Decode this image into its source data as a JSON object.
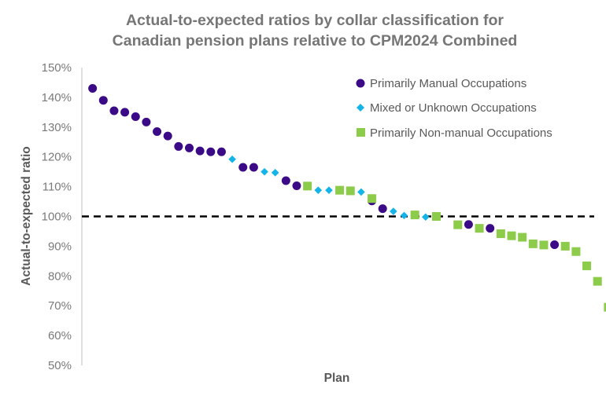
{
  "colors": {
    "manual": "#3b0a86",
    "mixed": "#14b4e8",
    "nonmanual": "#8ccc4a",
    "reference_line": "#000000",
    "text": "#595959",
    "title": "#767676"
  },
  "chart_data": {
    "type": "scatter",
    "title_lines": [
      "Actual-to-expected ratios by collar classification for",
      "Canadian pension plans relative to CPM2024 Combined"
    ],
    "xlabel": "Plan",
    "ylabel": "Actual-to-expected ratio",
    "ylim": [
      0.5,
      1.5
    ],
    "yticks": [
      {
        "value": 1.5,
        "label": "150%"
      },
      {
        "value": 1.4,
        "label": "140%"
      },
      {
        "value": 1.3,
        "label": "130%"
      },
      {
        "value": 1.2,
        "label": "120%"
      },
      {
        "value": 1.1,
        "label": "110%"
      },
      {
        "value": 1.0,
        "label": "100%"
      },
      {
        "value": 0.9,
        "label": "90%"
      },
      {
        "value": 0.8,
        "label": "80%"
      },
      {
        "value": 0.7,
        "label": "70%"
      },
      {
        "value": 0.6,
        "label": "60%"
      },
      {
        "value": 0.5,
        "label": "50%"
      }
    ],
    "reference_line": {
      "value": 1.0,
      "style": "dashed"
    },
    "grid": false,
    "legend_position": "top-right",
    "x_count": 48,
    "series": [
      {
        "name": "Primarily Manual Occupations",
        "marker": "circle",
        "color_key": "manual",
        "points": [
          [
            1,
            1.43
          ],
          [
            2,
            1.39
          ],
          [
            3,
            1.355
          ],
          [
            4,
            1.35
          ],
          [
            5,
            1.335
          ],
          [
            6,
            1.317
          ],
          [
            7,
            1.285
          ],
          [
            8,
            1.27
          ],
          [
            9,
            1.235
          ],
          [
            10,
            1.23
          ],
          [
            11,
            1.22
          ],
          [
            12,
            1.217
          ],
          [
            13,
            1.217
          ],
          [
            15,
            1.165
          ],
          [
            16,
            1.165
          ],
          [
            19,
            1.12
          ],
          [
            20,
            1.103
          ],
          [
            27,
            1.052
          ],
          [
            28,
            1.026
          ],
          [
            36,
            0.973
          ],
          [
            38,
            0.96
          ],
          [
            44,
            0.905
          ]
        ]
      },
      {
        "name": "Mixed or Unknown Occupations",
        "marker": "diamond",
        "color_key": "mixed",
        "points": [
          [
            14,
            1.192
          ],
          [
            17,
            1.15
          ],
          [
            18,
            1.147
          ],
          [
            22,
            1.088
          ],
          [
            23,
            1.088
          ],
          [
            26,
            1.082
          ],
          [
            29,
            1.017
          ],
          [
            30,
            1.003
          ],
          [
            32,
            0.998
          ]
        ]
      },
      {
        "name": "Primarily Non-manual Occupations",
        "marker": "square",
        "color_key": "nonmanual",
        "points": [
          [
            21,
            1.102
          ],
          [
            24,
            1.088
          ],
          [
            25,
            1.086
          ],
          [
            27,
            1.06
          ],
          [
            31,
            1.005
          ],
          [
            33,
            1.0
          ],
          [
            35,
            0.972
          ],
          [
            37,
            0.96
          ],
          [
            39,
            0.942
          ],
          [
            40,
            0.935
          ],
          [
            41,
            0.93
          ],
          [
            42,
            0.908
          ],
          [
            43,
            0.904
          ],
          [
            45,
            0.9
          ],
          [
            46,
            0.882
          ],
          [
            47,
            0.834
          ],
          [
            48,
            0.782
          ],
          [
            49,
            0.695
          ]
        ]
      }
    ]
  }
}
